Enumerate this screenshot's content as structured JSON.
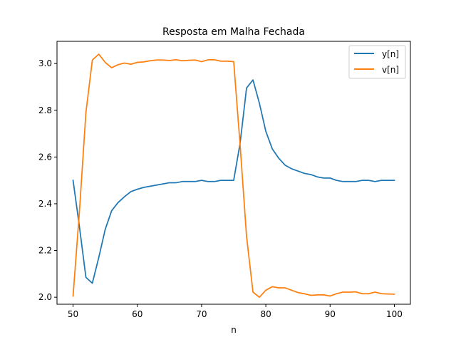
{
  "chart_data": {
    "type": "line",
    "title": "Resposta em Malha Fechada",
    "xlabel": "n",
    "ylabel": "",
    "xlim": [
      47.5,
      102.5
    ],
    "ylim": [
      1.97,
      3.095
    ],
    "xticks": [
      50,
      60,
      70,
      80,
      90,
      100
    ],
    "yticks": [
      2.0,
      2.2,
      2.4,
      2.6,
      2.8,
      3.0
    ],
    "xtick_labels": [
      "50",
      "60",
      "70",
      "80",
      "90",
      "100"
    ],
    "ytick_labels": [
      "2.0",
      "2.2",
      "2.4",
      "2.6",
      "2.8",
      "3.0"
    ],
    "grid": false,
    "legend_position": "top-right",
    "x": [
      50,
      51,
      52,
      53,
      54,
      55,
      56,
      57,
      58,
      59,
      60,
      61,
      62,
      63,
      64,
      65,
      66,
      67,
      68,
      69,
      70,
      71,
      72,
      73,
      74,
      75,
      76,
      77,
      78,
      79,
      80,
      81,
      82,
      83,
      84,
      85,
      86,
      87,
      88,
      89,
      90,
      91,
      92,
      93,
      94,
      95,
      96,
      97,
      98,
      99,
      100
    ],
    "series": [
      {
        "name": "y[n]",
        "color": "#1f77b4",
        "values": [
          2.5,
          2.3,
          2.085,
          2.06,
          2.17,
          2.29,
          2.37,
          2.405,
          2.43,
          2.452,
          2.462,
          2.47,
          2.475,
          2.48,
          2.485,
          2.49,
          2.49,
          2.495,
          2.495,
          2.495,
          2.5,
          2.495,
          2.495,
          2.5,
          2.5,
          2.5,
          2.66,
          2.895,
          2.93,
          2.83,
          2.71,
          2.635,
          2.595,
          2.565,
          2.55,
          2.54,
          2.53,
          2.525,
          2.515,
          2.51,
          2.51,
          2.5,
          2.495,
          2.495,
          2.495,
          2.5,
          2.5,
          2.495,
          2.5,
          2.5,
          2.5
        ]
      },
      {
        "name": "v[n]",
        "color": "#ff7f0e",
        "values": [
          2.005,
          2.37,
          2.79,
          3.015,
          3.04,
          3.005,
          2.982,
          2.995,
          3.002,
          2.997,
          3.005,
          3.007,
          3.012,
          3.015,
          3.015,
          3.013,
          3.016,
          3.012,
          3.014,
          3.015,
          3.008,
          3.016,
          3.016,
          3.01,
          3.01,
          3.008,
          2.65,
          2.26,
          2.022,
          2.0,
          2.03,
          2.045,
          2.04,
          2.04,
          2.03,
          2.02,
          2.015,
          2.008,
          2.01,
          2.01,
          2.005,
          2.015,
          2.022,
          2.022,
          2.023,
          2.015,
          2.015,
          2.022,
          2.015,
          2.014,
          2.013
        ]
      }
    ]
  }
}
